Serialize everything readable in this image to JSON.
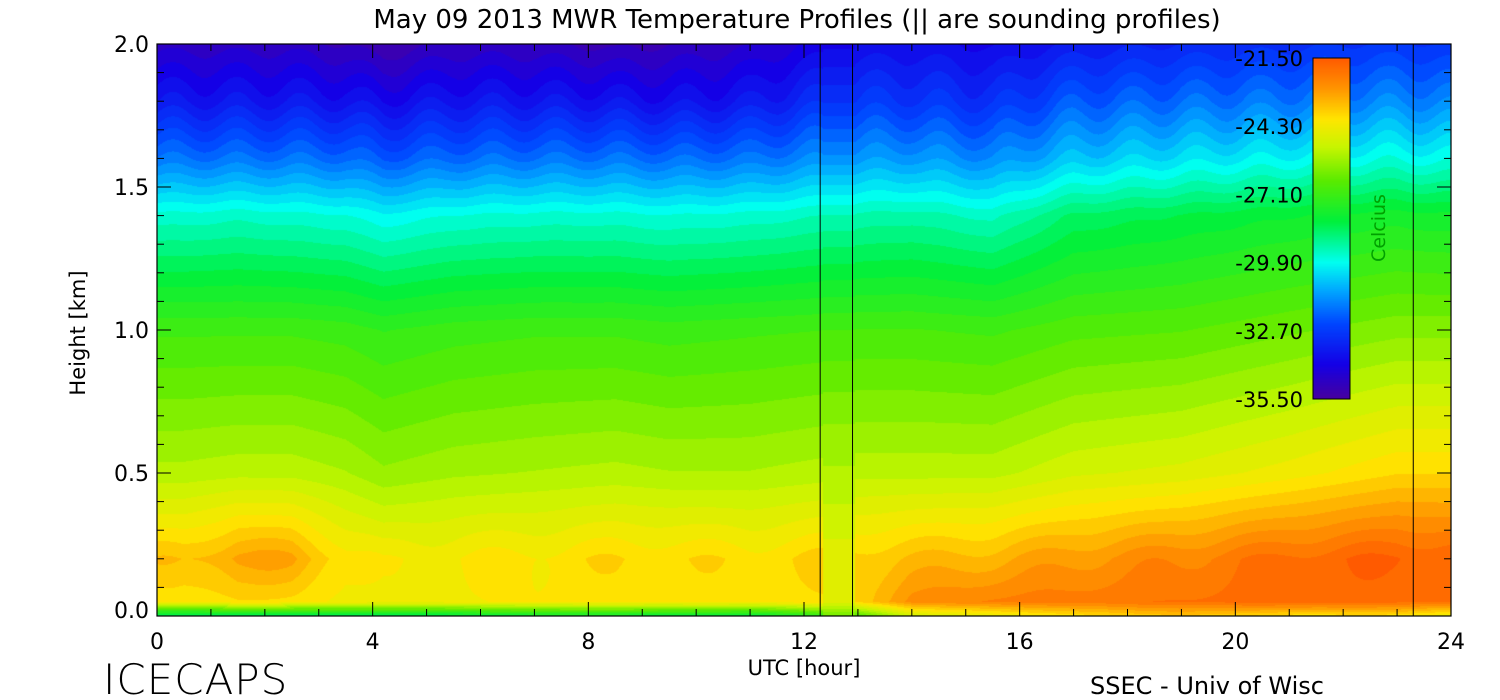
{
  "chart_data": {
    "type": "heatmap",
    "title": "May 09 2013 MWR Temperature Profiles (|| are sounding profiles)",
    "xlabel": "UTC [hour]",
    "ylabel": "Height [km]",
    "xlim": [
      0,
      24
    ],
    "ylim": [
      0,
      2
    ],
    "x_ticks": [
      "0",
      "4",
      "8",
      "12",
      "16",
      "20",
      "24"
    ],
    "y_ticks": [
      "0.0",
      "0.5",
      "1.0",
      "1.5",
      "2.0"
    ],
    "sounding_times": [
      12.3,
      12.9,
      23.3
    ],
    "data_gap": [
      12.35,
      12.95
    ],
    "colorbar": {
      "label": "Celcius",
      "min": -35.5,
      "max": -21.5,
      "ticks": [
        "-21.50",
        "-24.30",
        "-27.10",
        "-29.90",
        "-32.70",
        "-35.50"
      ]
    },
    "profile_knots_km": [
      0.0,
      0.05,
      0.2,
      0.5,
      1.0,
      1.4,
      1.6,
      1.8,
      2.0
    ],
    "profiles": [
      {
        "hour": 0.5,
        "temps": [
          -28.8,
          -24.0,
          -23.5,
          -25.4,
          -27.0,
          -29.6,
          -31.8,
          -33.6,
          -34.8
        ]
      },
      {
        "hour": 1.5,
        "temps": [
          -28.8,
          -23.8,
          -22.9,
          -25.3,
          -27.0,
          -29.5,
          -31.8,
          -33.6,
          -34.8
        ]
      },
      {
        "hour": 2.5,
        "temps": [
          -28.8,
          -23.9,
          -23.0,
          -25.3,
          -27.0,
          -29.6,
          -31.8,
          -33.6,
          -34.8
        ]
      },
      {
        "hour": 3.5,
        "temps": [
          -28.5,
          -24.2,
          -23.9,
          -25.5,
          -27.1,
          -29.7,
          -31.9,
          -33.7,
          -35.0
        ]
      },
      {
        "hour": 4.2,
        "temps": [
          -28.5,
          -24.3,
          -24.2,
          -25.8,
          -27.3,
          -30.0,
          -32.2,
          -33.9,
          -35.3
        ]
      },
      {
        "hour": 5.5,
        "temps": [
          -28.4,
          -24.2,
          -24.1,
          -25.6,
          -27.1,
          -29.7,
          -31.9,
          -33.6,
          -34.9
        ]
      },
      {
        "hour": 7.0,
        "temps": [
          -28.0,
          -24.1,
          -24.0,
          -25.5,
          -27.0,
          -29.6,
          -31.8,
          -33.6,
          -34.9
        ]
      },
      {
        "hour": 8.5,
        "temps": [
          -28.0,
          -24.0,
          -23.8,
          -25.4,
          -27.0,
          -29.6,
          -31.8,
          -33.7,
          -35.1
        ]
      },
      {
        "hour": 9.5,
        "temps": [
          -28.2,
          -24.0,
          -23.8,
          -25.5,
          -27.1,
          -29.7,
          -31.9,
          -33.8,
          -35.0
        ]
      },
      {
        "hour": 11.0,
        "temps": [
          -28.3,
          -24.0,
          -23.9,
          -25.5,
          -27.0,
          -29.6,
          -31.8,
          -33.6,
          -34.7
        ]
      },
      {
        "hour": 12.9,
        "temps": [
          -27.0,
          -23.8,
          -23.6,
          -25.3,
          -26.9,
          -29.3,
          -31.3,
          -32.8,
          -33.9
        ]
      },
      {
        "hour": 14.0,
        "temps": [
          -25.0,
          -22.6,
          -23.4,
          -25.3,
          -26.9,
          -29.2,
          -31.2,
          -32.8,
          -33.8
        ]
      },
      {
        "hour": 15.5,
        "temps": [
          -24.5,
          -22.3,
          -23.2,
          -25.3,
          -27.0,
          -29.5,
          -31.5,
          -33.0,
          -34.0
        ]
      },
      {
        "hour": 17.0,
        "temps": [
          -24.0,
          -22.2,
          -22.8,
          -24.9,
          -26.7,
          -28.6,
          -30.7,
          -32.2,
          -33.5
        ]
      },
      {
        "hour": 19.0,
        "temps": [
          -23.5,
          -22.0,
          -22.4,
          -24.7,
          -26.6,
          -28.3,
          -30.3,
          -31.9,
          -33.2
        ]
      },
      {
        "hour": 21.0,
        "temps": [
          -24.0,
          -21.8,
          -21.9,
          -24.3,
          -26.3,
          -28.0,
          -30.0,
          -31.7,
          -33.0
        ]
      },
      {
        "hour": 23.0,
        "temps": [
          -24.0,
          -21.9,
          -21.6,
          -23.8,
          -26.0,
          -27.8,
          -29.8,
          -31.5,
          -32.8
        ]
      },
      {
        "hour": 24.0,
        "temps": [
          -24.5,
          -22.0,
          -21.7,
          -23.8,
          -26.0,
          -27.9,
          -29.9,
          -31.6,
          -32.9
        ]
      }
    ]
  },
  "footer": {
    "logo": "ICECAPS",
    "credit": "SSEC - Univ of Wisc"
  }
}
